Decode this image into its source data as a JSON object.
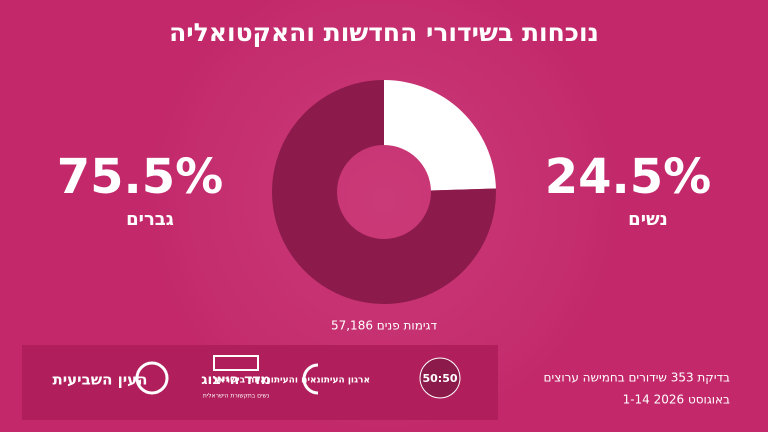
{
  "chart_data": {
    "type": "pie",
    "donut": true,
    "title": "נוכחות בשידורי החדשות והאקטואליה",
    "categories": [
      "נשים",
      "גברים"
    ],
    "values": [
      24.5,
      75.5
    ],
    "value_labels": [
      "24.5%",
      "75.5%"
    ],
    "colors": [
      "#ffffff",
      "#8c1b4c"
    ],
    "note": "57,186 דגימות פנים"
  },
  "footer": {
    "lines": [
      "בדיקת 353 שידורים בחמישה ערוצים",
      "1-14 באוגוסט 2026"
    ],
    "logos": [
      "העין השביעית",
      "מדד הייצוג",
      "נשים בתקשורת הישראלית",
      "ארגון העיתונאים והעיתונאיות בישראל",
      "50:50"
    ]
  }
}
